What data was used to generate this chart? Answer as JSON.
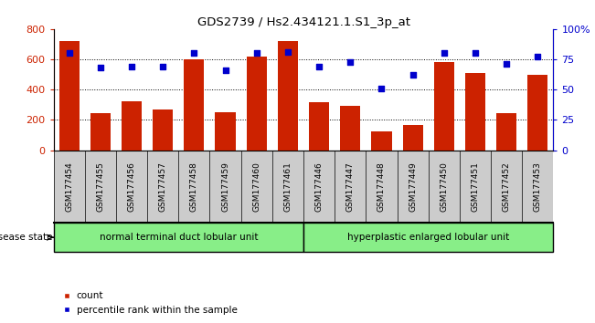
{
  "title": "GDS2739 / Hs2.434121.1.S1_3p_at",
  "categories": [
    "GSM177454",
    "GSM177455",
    "GSM177456",
    "GSM177457",
    "GSM177458",
    "GSM177459",
    "GSM177460",
    "GSM177461",
    "GSM177446",
    "GSM177447",
    "GSM177448",
    "GSM177449",
    "GSM177450",
    "GSM177451",
    "GSM177452",
    "GSM177453"
  ],
  "bar_values": [
    720,
    245,
    325,
    270,
    600,
    250,
    620,
    720,
    320,
    295,
    125,
    165,
    580,
    510,
    247,
    500
  ],
  "percentile_values": [
    80,
    68,
    69,
    69,
    80,
    66,
    80,
    81,
    69,
    73,
    51,
    62,
    80,
    80,
    71,
    77
  ],
  "group1_label": "normal terminal duct lobular unit",
  "group2_label": "hyperplastic enlarged lobular unit",
  "group1_count": 8,
  "group2_count": 8,
  "bar_color": "#cc2200",
  "dot_color": "#0000cc",
  "ylim_left": [
    0,
    800
  ],
  "ylim_right": [
    0,
    100
  ],
  "yticks_left": [
    0,
    200,
    400,
    600,
    800
  ],
  "yticks_right": [
    0,
    25,
    50,
    75,
    100
  ],
  "ytick_labels_right": [
    "0",
    "25",
    "50",
    "75",
    "100%"
  ],
  "grid_values": [
    200,
    400,
    600
  ],
  "background_color": "#ffffff",
  "legend_count_label": "count",
  "legend_pct_label": "percentile rank within the sample",
  "group_bg_color": "#88ee88",
  "xtick_bg_color": "#cccccc",
  "figsize": [
    6.51,
    3.54
  ],
  "dpi": 100
}
